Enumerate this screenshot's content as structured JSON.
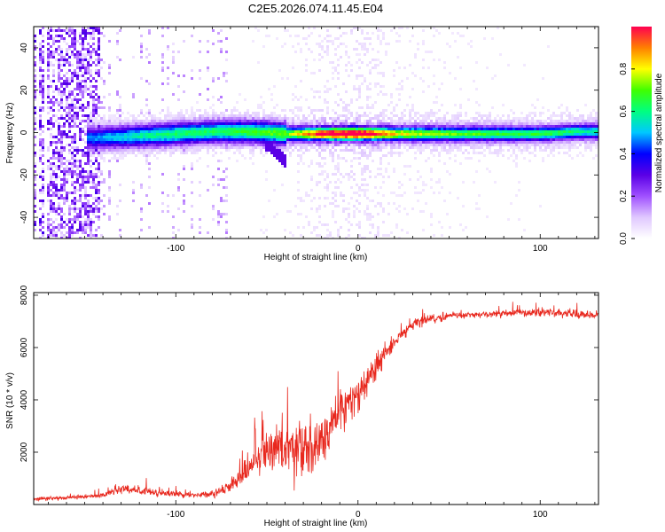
{
  "title": "C2E5.2026.074.11.45.E04",
  "colors": {
    "snr_line": "#e8281e",
    "axis": "#000000",
    "colormap": [
      "#ffffff",
      "#e0c8ff",
      "#a050ff",
      "#5a00e6",
      "#0000ff",
      "#00c8ff",
      "#00ff80",
      "#40ff00",
      "#ffff00",
      "#ff8000",
      "#ff0050"
    ]
  },
  "chart_data": [
    {
      "type": "heatmap",
      "title": "C2E5.2026.074.11.45.E04",
      "xlabel": "Height of straight line (km)",
      "ylabel": "Frequency (Hz)",
      "xlim": [
        -178,
        132
      ],
      "ylim": [
        -50,
        50
      ],
      "xticks": [
        -100,
        0,
        100
      ],
      "xtick_labels": [
        "-100",
        "0",
        "100"
      ],
      "yticks": [
        -40,
        -20,
        0,
        20,
        40
      ],
      "ytick_labels": [
        "-40",
        "-20",
        "0",
        "20",
        "40"
      ],
      "colorbar": {
        "label": "Normalized spectral amplitude",
        "range": [
          0.0,
          1.0
        ],
        "ticks": [
          0.0,
          0.2,
          0.4,
          0.6,
          0.8
        ],
        "tick_labels": [
          "0.0",
          "0.2",
          "0.4",
          "0.6",
          "0.8"
        ]
      },
      "ridge": {
        "description_points_x": [
          -145,
          -120,
          -100,
          -80,
          -60,
          -40,
          -30,
          -20,
          -10,
          0,
          20,
          50,
          80,
          100,
          120,
          132
        ],
        "center_freq": [
          -2,
          -1,
          0,
          1,
          1,
          0,
          0,
          0,
          0,
          0,
          0,
          0,
          0,
          0,
          1,
          1
        ],
        "peak_amplitude": [
          0.35,
          0.45,
          0.5,
          0.5,
          0.55,
          0.6,
          0.75,
          0.9,
          1.0,
          1.0,
          0.7,
          0.6,
          0.55,
          0.55,
          0.5,
          0.45
        ]
      }
    },
    {
      "type": "line",
      "xlabel": "Height of straight line (km)",
      "ylabel": "SNR (10 * v/v)",
      "xlim": [
        -178,
        132
      ],
      "ylim": [
        0,
        8100
      ],
      "xticks": [
        -100,
        0,
        100
      ],
      "xtick_labels": [
        "-100",
        "0",
        "100"
      ],
      "yticks": [
        2000,
        4000,
        6000,
        8000
      ],
      "ytick_labels": [
        "2000",
        "4000",
        "6000",
        "8000"
      ],
      "series": [
        {
          "name": "SNR",
          "x": [
            -178,
            -160,
            -140,
            -130,
            -110,
            -90,
            -80,
            -70,
            -60,
            -50,
            -40,
            -30,
            -20,
            -10,
            0,
            10,
            20,
            30,
            40,
            50,
            60,
            80,
            100,
            120,
            132
          ],
          "mean": [
            200,
            250,
            350,
            600,
            450,
            350,
            400,
            700,
            1400,
            2000,
            2200,
            2100,
            2400,
            3500,
            4200,
            5300,
            6200,
            6900,
            7100,
            7200,
            7250,
            7300,
            7350,
            7300,
            7200
          ],
          "noise_amplitude": [
            120,
            150,
            200,
            350,
            250,
            200,
            250,
            500,
            900,
            1500,
            1900,
            2100,
            1800,
            1500,
            1300,
            900,
            500,
            350,
            300,
            250,
            250,
            250,
            300,
            300,
            250
          ]
        }
      ]
    }
  ]
}
